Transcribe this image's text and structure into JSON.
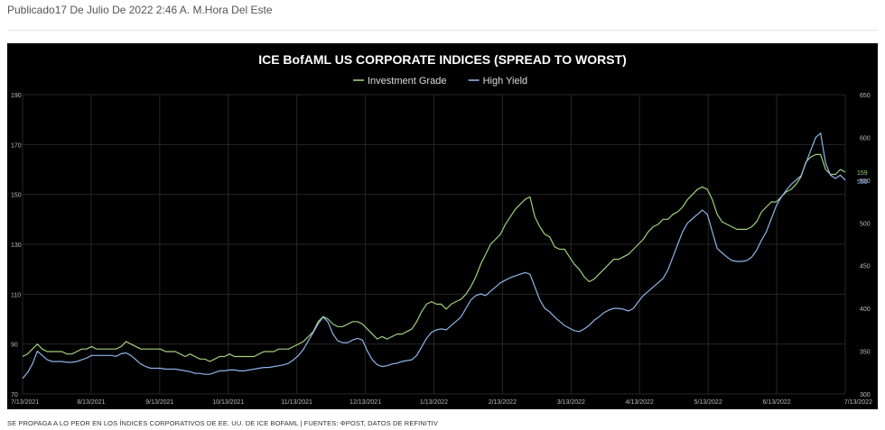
{
  "header": {
    "published": "Publicado17 De Julio De 2022 2:46 A. M.Hora Del Este"
  },
  "footer": {
    "source": "SE PROPAGA A LO PEOR EN LOS ÍNDICES CORPORATIVOS DE EE. UU. DE ICE BOFAML | FUENTES: ΦPOST, DATOS DE REFINITIV"
  },
  "chart_data": {
    "type": "line",
    "title": "ICE BofAML US CORPORATE INDICES (SPREAD TO WORST)",
    "legend": "top-center",
    "grid": true,
    "colors": {
      "Investment Grade": "#9fd07a",
      "High Yield": "#8fb3e8"
    },
    "x_tick_labels": [
      "7/13/2021",
      "8/13/2021",
      "9/13/2021",
      "10/13/2021",
      "11/13/2021",
      "12/13/2021",
      "1/13/2022",
      "2/13/2022",
      "3/13/2022",
      "4/13/2022",
      "5/13/2022",
      "6/13/2022",
      "7/13/2022"
    ],
    "y_left": {
      "ticks": [
        70,
        90,
        110,
        130,
        150,
        170,
        190
      ],
      "ylim": [
        70,
        190
      ]
    },
    "y_right": {
      "ticks": [
        300,
        350,
        400,
        450,
        500,
        550,
        600,
        650
      ],
      "ylim": [
        300,
        650
      ]
    },
    "end_labels": {
      "Investment Grade": "159",
      "High Yield": "550"
    },
    "series": [
      {
        "name": "Investment Grade",
        "axis": "left",
        "values": [
          85,
          86,
          88,
          90,
          88,
          87,
          87,
          87,
          87,
          86,
          86,
          87,
          88,
          88,
          89,
          88,
          88,
          88,
          88,
          88,
          89,
          91,
          90,
          89,
          88,
          88,
          88,
          88,
          88,
          87,
          87,
          87,
          86,
          85,
          86,
          85,
          84,
          84,
          83,
          84,
          85,
          85,
          86,
          85,
          85,
          85,
          85,
          85,
          86,
          87,
          87,
          87,
          88,
          88,
          88,
          89,
          90,
          91,
          93,
          95,
          99,
          101,
          100,
          98,
          97,
          97,
          98,
          99,
          99,
          98,
          96,
          94,
          92,
          93,
          92,
          93,
          94,
          94,
          95,
          96,
          99,
          103,
          106,
          107,
          106,
          106,
          104,
          106,
          107,
          108,
          110,
          113,
          117,
          122,
          126,
          130,
          132,
          134,
          138,
          141,
          144,
          146,
          148,
          149,
          141,
          137,
          134,
          133,
          129,
          128,
          128,
          125,
          122,
          120,
          117,
          115,
          116,
          118,
          120,
          122,
          124,
          124,
          125,
          126,
          128,
          130,
          132,
          135,
          137,
          138,
          140,
          140,
          142,
          143,
          145,
          148,
          150,
          152,
          153,
          152,
          148,
          142,
          139,
          138,
          137,
          136,
          136,
          136,
          137,
          139,
          143,
          145,
          147,
          147,
          149,
          151,
          152,
          154,
          157,
          163,
          165,
          166,
          166,
          160,
          158,
          158,
          160,
          159
        ]
      },
      {
        "name": "High Yield",
        "axis": "right",
        "values": [
          318,
          325,
          335,
          350,
          345,
          340,
          338,
          338,
          338,
          337,
          337,
          338,
          340,
          342,
          345,
          345,
          345,
          345,
          345,
          344,
          347,
          348,
          345,
          340,
          335,
          332,
          330,
          330,
          330,
          329,
          329,
          329,
          328,
          327,
          326,
          324,
          324,
          323,
          323,
          325,
          327,
          327,
          328,
          328,
          327,
          327,
          328,
          329,
          330,
          331,
          331,
          332,
          333,
          334,
          336,
          340,
          345,
          352,
          362,
          372,
          382,
          390,
          384,
          370,
          362,
          360,
          360,
          363,
          365,
          363,
          350,
          340,
          334,
          332,
          333,
          335,
          336,
          338,
          339,
          340,
          345,
          355,
          365,
          372,
          375,
          376,
          375,
          380,
          385,
          390,
          400,
          410,
          415,
          417,
          415,
          420,
          425,
          430,
          433,
          436,
          438,
          440,
          442,
          440,
          425,
          410,
          400,
          396,
          390,
          385,
          380,
          377,
          374,
          373,
          376,
          380,
          386,
          390,
          395,
          398,
          400,
          400,
          399,
          397,
          400,
          408,
          415,
          420,
          425,
          430,
          435,
          445,
          460,
          475,
          490,
          500,
          505,
          510,
          515,
          510,
          490,
          470,
          465,
          460,
          456,
          455,
          455,
          456,
          460,
          468,
          480,
          490,
          505,
          520,
          530,
          538,
          545,
          550,
          555,
          570,
          585,
          600,
          605,
          570,
          556,
          552,
          556,
          550
        ]
      }
    ]
  }
}
